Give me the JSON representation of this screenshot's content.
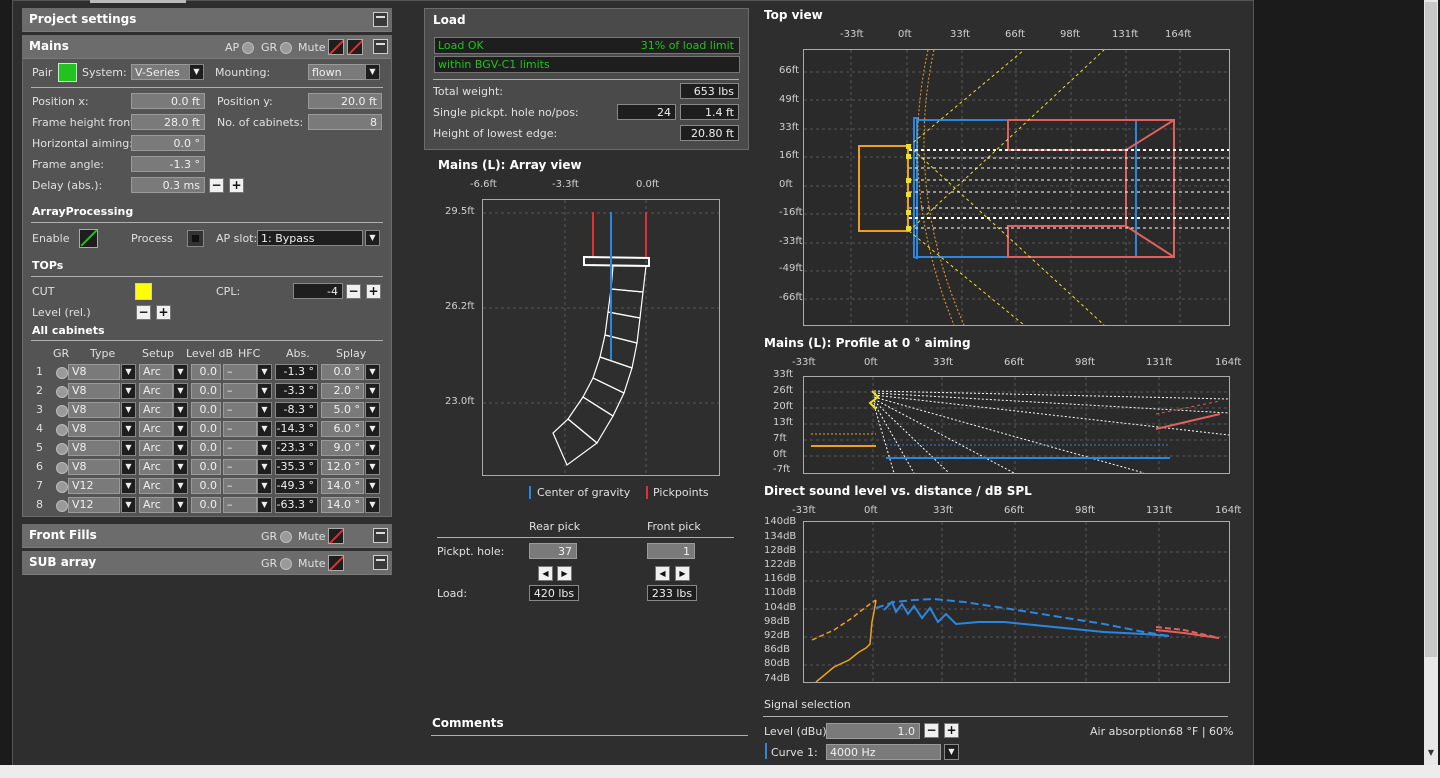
{
  "project_settings": {
    "title": "Project settings"
  },
  "mains": {
    "title": "Mains",
    "ap_label": "AP",
    "gr_label": "GR",
    "mute_label": "Mute",
    "pair_label": "Pair",
    "system_label": "System:",
    "system_value": "V-Series",
    "mounting_label": "Mounting:",
    "mounting_value": "flown",
    "position_x_label": "Position x:",
    "position_x": "0.0 ft",
    "position_y_label": "Position y:",
    "position_y": "20.0 ft",
    "frame_height_label": "Frame height front:",
    "frame_height": "28.0 ft",
    "no_cabinets_label": "No. of cabinets:",
    "no_cabinets": "8",
    "horizontal_aiming_label": "Horizontal aiming:",
    "horizontal_aiming": "0.0 °",
    "frame_angle_label": "Frame angle:",
    "frame_angle": "-1.3 °",
    "delay_label": "Delay (abs.):",
    "delay": "0.3 ms",
    "array_processing_title": "ArrayProcessing",
    "enable_label": "Enable",
    "process_label": "Process",
    "ap_slot_label": "AP slot:",
    "ap_slot_value": "1: Bypass",
    "tops_title": "TOPs",
    "cut_label": "CUT",
    "cpl_label": "CPL:",
    "cpl_value": "-4",
    "level_rel_label": "Level (rel.)",
    "all_cabinets_title": "All cabinets",
    "columns": {
      "gr": "GR",
      "type": "Type",
      "setup": "Setup",
      "level": "Level dB",
      "hfc": "HFC",
      "abs": "Abs.",
      "splay": "Splay"
    },
    "rows": [
      {
        "n": "1",
        "type": "V8",
        "setup": "Arc",
        "level": "0.0",
        "hfc": "–",
        "abs": "-1.3 °",
        "splay": "0.0 °"
      },
      {
        "n": "2",
        "type": "V8",
        "setup": "Arc",
        "level": "0.0",
        "hfc": "–",
        "abs": "-3.3 °",
        "splay": "2.0 °"
      },
      {
        "n": "3",
        "type": "V8",
        "setup": "Arc",
        "level": "0.0",
        "hfc": "–",
        "abs": "-8.3 °",
        "splay": "5.0 °"
      },
      {
        "n": "4",
        "type": "V8",
        "setup": "Arc",
        "level": "0.0",
        "hfc": "–",
        "abs": "-14.3 °",
        "splay": "6.0 °"
      },
      {
        "n": "5",
        "type": "V8",
        "setup": "Arc",
        "level": "0.0",
        "hfc": "–",
        "abs": "-23.3 °",
        "splay": "9.0 °"
      },
      {
        "n": "6",
        "type": "V8",
        "setup": "Arc",
        "level": "0.0",
        "hfc": "–",
        "abs": "-35.3 °",
        "splay": "12.0 °"
      },
      {
        "n": "7",
        "type": "V12",
        "setup": "Arc",
        "level": "0.0",
        "hfc": "–",
        "abs": "-49.3 °",
        "splay": "14.0 °"
      },
      {
        "n": "8",
        "type": "V12",
        "setup": "Arc",
        "level": "0.0",
        "hfc": "–",
        "abs": "-63.3 °",
        "splay": "14.0 °"
      }
    ]
  },
  "front_fills": {
    "title": "Front Fills",
    "gr_label": "GR",
    "mute_label": "Mute"
  },
  "sub_array": {
    "title": "SUB array",
    "gr_label": "GR",
    "mute_label": "Mute"
  },
  "load": {
    "title": "Load",
    "status": "Load OK",
    "status_pct": "31% of load limit",
    "bgv": "within BGV-C1 limits",
    "total_weight_label": "Total weight:",
    "total_weight": "653 lbs",
    "single_pick_label": "Single pickpt. hole no/pos:",
    "single_pick_no": "24",
    "single_pick_pos": "1.4 ft",
    "lowest_edge_label": "Height of lowest edge:",
    "lowest_edge": "20.80 ft"
  },
  "array_view": {
    "title": "Mains (L): Array view",
    "x_ticks": [
      "-6.6ft",
      "-3.3ft",
      "0.0ft"
    ],
    "y_ticks": [
      "29.5ft",
      "26.2ft",
      "23.0ft"
    ],
    "legend_cog": "Center of gravity",
    "legend_pick": "Pickpoints"
  },
  "pick": {
    "rear_label": "Rear pick",
    "front_label": "Front pick",
    "hole_label": "Pickpt. hole:",
    "rear_hole": "37",
    "front_hole": "1",
    "load_label": "Load:",
    "rear_load": "420 lbs",
    "front_load": "233 lbs"
  },
  "comments": {
    "title": "Comments"
  },
  "top_view": {
    "title": "Top view",
    "x_ticks": [
      "-33ft",
      "0ft",
      "33ft",
      "66ft",
      "98ft",
      "131ft",
      "164ft"
    ],
    "y_ticks": [
      "66ft",
      "49ft",
      "33ft",
      "16ft",
      "0ft",
      "-16ft",
      "-33ft",
      "-49ft",
      "-66ft"
    ]
  },
  "profile": {
    "title": "Mains (L): Profile at 0 ° aiming",
    "x_ticks": [
      "-33ft",
      "0ft",
      "33ft",
      "66ft",
      "98ft",
      "131ft",
      "164ft"
    ],
    "y_ticks": [
      "33ft",
      "26ft",
      "20ft",
      "13ft",
      "7ft",
      "0ft",
      "-7ft"
    ]
  },
  "spl": {
    "title": "Direct sound level vs. distance / dB SPL",
    "x_ticks": [
      "-33ft",
      "0ft",
      "33ft",
      "66ft",
      "98ft",
      "131ft",
      "164ft"
    ],
    "y_ticks": [
      "140dB",
      "134dB",
      "128dB",
      "122dB",
      "116dB",
      "110dB",
      "104dB",
      "98dB",
      "92dB",
      "86dB",
      "80dB",
      "74dB"
    ]
  },
  "signal": {
    "title": "Signal selection",
    "level_label": "Level (dBu):",
    "level_value": "1.0",
    "air_label": "Air absorption:",
    "air_value": "68 °F | 60%",
    "curve_label": "Curve 1:",
    "curve_value": "4000 Hz"
  },
  "colors": {
    "green": "#22c21f",
    "blue": "#2b86e0",
    "red": "#e06060",
    "orange": "#f0a020",
    "yellow": "#f0e020"
  }
}
